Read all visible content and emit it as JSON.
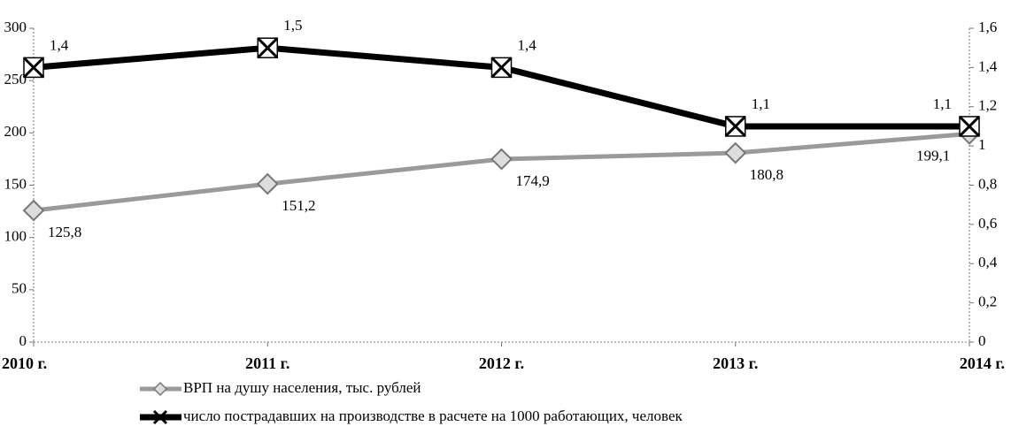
{
  "chart_data": {
    "type": "line",
    "categories": [
      "2010 г.",
      "2011 г.",
      "2012 г.",
      "2013 г.",
      "2014 г."
    ],
    "series": [
      {
        "name": "ВРП на душу населения, тыс. рублей",
        "color": "#9a9a9a",
        "marker": "diamond",
        "values": [
          125.8,
          151.2,
          174.9,
          180.8,
          199.1
        ],
        "value_labels": [
          "125,8",
          "151,2",
          "174,9",
          "180,8",
          "199,1"
        ]
      },
      {
        "name": "число пострадавших на производстве в расчете на 1000 работающих, человек",
        "color": "#000000",
        "marker": "x",
        "axis": "y2",
        "values": [
          1.4,
          1.5,
          1.4,
          1.1,
          1.1
        ],
        "value_labels": [
          "1,4",
          "1,5",
          "1,4",
          "1,1",
          "1,1"
        ]
      }
    ],
    "ylim": [
      0,
      300
    ],
    "yticks": [
      0,
      50,
      100,
      150,
      200,
      250,
      300
    ],
    "y2lim": [
      0,
      1.6
    ],
    "y2ticks": [
      0,
      {
        "value": 0.2,
        "label": "0,2"
      },
      {
        "value": 0.4,
        "label": "0,4"
      },
      {
        "value": 0.6,
        "label": "0,6"
      },
      {
        "value": 0.8,
        "label": "0,8"
      },
      1,
      {
        "value": 1.2,
        "label": "1,2"
      },
      {
        "value": 1.4,
        "label": "1,4"
      },
      {
        "value": 1.6,
        "label": "1,6"
      }
    ],
    "grid": false,
    "legend": "bottom"
  }
}
